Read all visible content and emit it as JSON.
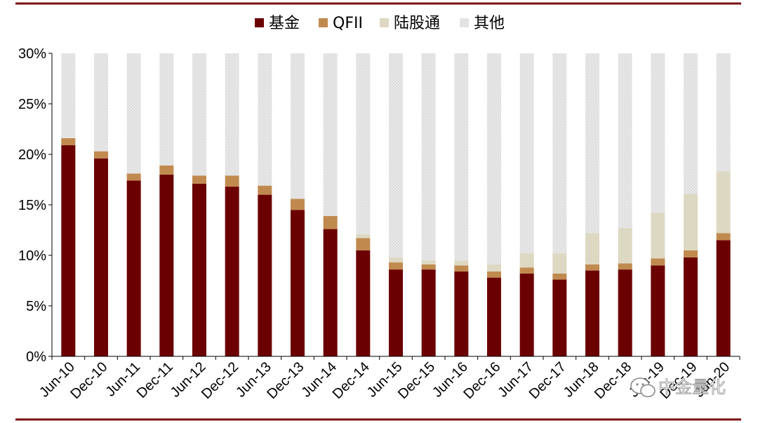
{
  "chart_data": {
    "type": "bar",
    "stacked": true,
    "categories": [
      "Jun-10",
      "Dec-10",
      "Jun-11",
      "Dec-11",
      "Jun-12",
      "Dec-12",
      "Jun-13",
      "Dec-13",
      "Jun-14",
      "Dec-14",
      "Jun-15",
      "Dec-15",
      "Jun-16",
      "Dec-16",
      "Jun-17",
      "Dec-17",
      "Jun-18",
      "Dec-18",
      "Jun-19",
      "Dec-19",
      "Jun-20"
    ],
    "series": [
      {
        "name": "基金",
        "color": "#6b0000",
        "values": [
          20.9,
          19.6,
          17.4,
          18.0,
          17.1,
          16.8,
          16.0,
          14.5,
          12.6,
          10.5,
          8.6,
          8.6,
          8.4,
          7.8,
          8.2,
          7.6,
          8.5,
          8.6,
          9.0,
          9.8,
          11.5
        ]
      },
      {
        "name": "QFII",
        "color": "#c08a4f",
        "values": [
          0.7,
          0.7,
          0.7,
          0.9,
          0.8,
          1.1,
          0.9,
          1.1,
          1.3,
          1.2,
          0.7,
          0.5,
          0.6,
          0.6,
          0.6,
          0.6,
          0.6,
          0.6,
          0.7,
          0.7,
          0.7
        ]
      },
      {
        "name": "陆股通",
        "color": "#ddd8c2",
        "values": [
          0,
          0,
          0,
          0,
          0,
          0,
          0,
          0,
          0,
          0.4,
          0.5,
          0.4,
          0.5,
          0.7,
          1.4,
          2.0,
          3.1,
          3.5,
          4.5,
          5.6,
          6.1
        ]
      },
      {
        "name": "其他",
        "color": "#e4e4e4",
        "values": [
          8.4,
          9.7,
          11.9,
          11.1,
          12.1,
          12.1,
          13.1,
          14.4,
          16.1,
          17.9,
          20.2,
          20.5,
          20.5,
          20.9,
          19.8,
          19.8,
          17.8,
          17.3,
          15.8,
          13.9,
          11.7
        ]
      }
    ],
    "ylim": [
      0,
      30
    ],
    "yticks": [
      0,
      5,
      10,
      15,
      20,
      25,
      30
    ],
    "ytick_format": "percent",
    "legend": "top-center",
    "grid": false
  },
  "watermark": {
    "text": "中金量化"
  }
}
